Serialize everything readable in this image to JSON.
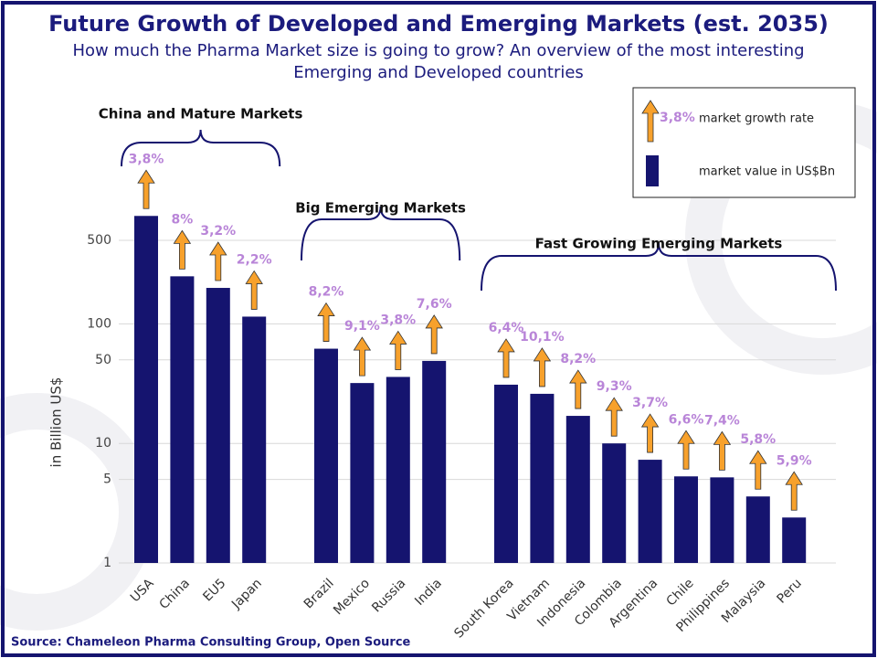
{
  "chart_data": {
    "type": "bar",
    "title": "Future Growth of Developed and Emerging Markets (est. 2035)",
    "subtitle": "How much the Pharma Market size is going to grow? An overview of the most interesting Emerging and Developed countries",
    "y_label": "in Billion US$",
    "source": "Source:  Chameleon Pharma Consulting Group, Open Source",
    "log_scale": true,
    "grid": true,
    "color": "#15146f",
    "arrow_color": "#f7a12c",
    "growth_label_color": "#b985d8",
    "ylim": [
      1,
      1000
    ],
    "yticks": [
      1,
      5,
      10,
      50,
      100,
      500
    ],
    "legend": {
      "growth_sample": "3,8%",
      "growth": "market growth rate",
      "value": "market value in US$Bn"
    },
    "groups": [
      {
        "label": "China and Mature Markets",
        "categories": [
          "USA",
          "China",
          "EU5",
          "Japan"
        ],
        "values": [
          800,
          250,
          200,
          115
        ],
        "growth_rates": [
          3.8,
          8,
          3.2,
          2.2
        ],
        "growth_labels": [
          "3,8%",
          "8%",
          "3,2%",
          "2,2%"
        ]
      },
      {
        "label": "Big Emerging Markets",
        "categories": [
          "Brazil",
          "Mexico",
          "Russia",
          "India"
        ],
        "values": [
          62,
          32,
          36,
          49
        ],
        "growth_rates": [
          8.2,
          9.1,
          3.8,
          7.6
        ],
        "growth_labels": [
          "8,2%",
          "9,1%",
          "3,8%",
          "7,6%"
        ]
      },
      {
        "label": "Fast Growing Emerging Markets",
        "categories": [
          "South Korea",
          "Vietnam",
          "Indonesia",
          "Colombia",
          "Argentina",
          "Chile",
          "Philippines",
          "Malaysia",
          "Peru"
        ],
        "values": [
          31,
          26,
          17,
          10,
          7.3,
          5.3,
          5.2,
          3.6,
          2.4
        ],
        "growth_rates": [
          6.4,
          10.1,
          8.2,
          9.3,
          3.7,
          6.6,
          7.4,
          5.8,
          5.9
        ],
        "growth_labels": [
          "6,4%",
          "10,1%",
          "8,2%",
          "9,3%",
          "3,7%",
          "6,6%",
          "7,4%",
          "5,8%",
          "5,9%"
        ]
      }
    ]
  }
}
